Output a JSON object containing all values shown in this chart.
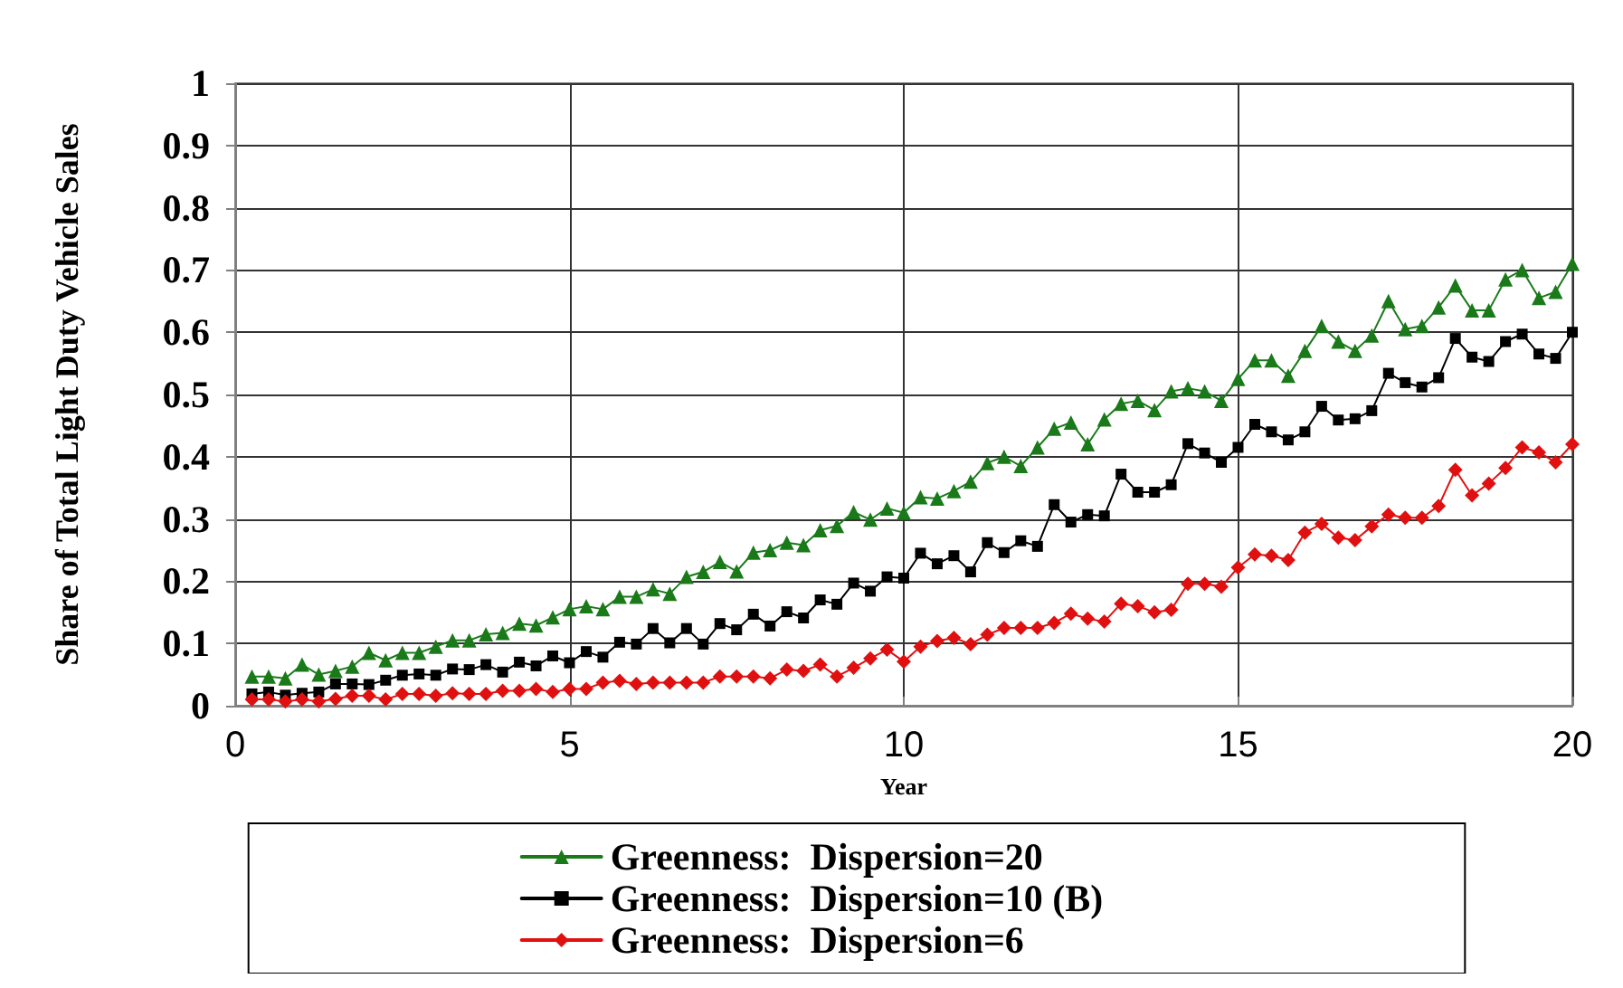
{
  "chart_data": {
    "type": "line",
    "xlabel": "Year",
    "ylabel": "Share of Total Light Duty Vehicle Sales",
    "x": [
      0.25,
      0.5,
      0.75,
      1,
      1.25,
      1.5,
      1.75,
      2,
      2.25,
      2.5,
      2.75,
      3,
      3.25,
      3.5,
      3.75,
      4,
      4.25,
      4.5,
      4.75,
      5,
      5.25,
      5.5,
      5.75,
      6,
      6.25,
      6.5,
      6.75,
      7,
      7.25,
      7.5,
      7.75,
      8,
      8.25,
      8.5,
      8.75,
      9,
      9.25,
      9.5,
      9.75,
      10,
      10.25,
      10.5,
      10.75,
      11,
      11.25,
      11.5,
      11.75,
      12,
      12.25,
      12.5,
      12.75,
      13,
      13.25,
      13.5,
      13.75,
      14,
      14.25,
      14.5,
      14.75,
      15,
      15.25,
      15.5,
      15.75,
      16,
      16.25,
      16.5,
      16.75,
      17,
      17.25,
      17.5,
      17.75,
      18,
      18.25,
      18.5,
      18.75,
      19,
      19.25,
      19.5,
      19.75,
      20
    ],
    "series": [
      {
        "name": "Greenness:  Dispersion=20",
        "color": "#1a7a1a",
        "marker": "triangle",
        "values": [
          0.047,
          0.047,
          0.044,
          0.066,
          0.05,
          0.056,
          0.063,
          0.085,
          0.073,
          0.085,
          0.085,
          0.095,
          0.105,
          0.105,
          0.115,
          0.117,
          0.132,
          0.129,
          0.142,
          0.155,
          0.16,
          0.155,
          0.175,
          0.175,
          0.187,
          0.18,
          0.207,
          0.215,
          0.231,
          0.216,
          0.246,
          0.25,
          0.262,
          0.258,
          0.282,
          0.289,
          0.311,
          0.299,
          0.317,
          0.31,
          0.335,
          0.333,
          0.345,
          0.36,
          0.39,
          0.4,
          0.385,
          0.415,
          0.445,
          0.455,
          0.42,
          0.46,
          0.485,
          0.49,
          0.475,
          0.505,
          0.51,
          0.505,
          0.49,
          0.525,
          0.555,
          0.555,
          0.53,
          0.57,
          0.61,
          0.585,
          0.57,
          0.595,
          0.65,
          0.605,
          0.61,
          0.64,
          0.675,
          0.635,
          0.635,
          0.685,
          0.7,
          0.655,
          0.665,
          0.71
        ]
      },
      {
        "name": "Greenness:  Dispersion=10 (B)",
        "color": "#000000",
        "marker": "square",
        "values": [
          0.019,
          0.022,
          0.017,
          0.02,
          0.022,
          0.035,
          0.035,
          0.034,
          0.041,
          0.049,
          0.051,
          0.049,
          0.059,
          0.058,
          0.066,
          0.054,
          0.07,
          0.064,
          0.08,
          0.069,
          0.087,
          0.078,
          0.102,
          0.099,
          0.124,
          0.101,
          0.124,
          0.099,
          0.132,
          0.122,
          0.147,
          0.128,
          0.151,
          0.141,
          0.17,
          0.163,
          0.197,
          0.184,
          0.207,
          0.205,
          0.245,
          0.228,
          0.241,
          0.215,
          0.262,
          0.246,
          0.265,
          0.256,
          0.323,
          0.295,
          0.307,
          0.305,
          0.372,
          0.343,
          0.343,
          0.355,
          0.421,
          0.406,
          0.391,
          0.415,
          0.452,
          0.44,
          0.427,
          0.44,
          0.481,
          0.459,
          0.461,
          0.474,
          0.534,
          0.519,
          0.512,
          0.527,
          0.59,
          0.56,
          0.553,
          0.585,
          0.597,
          0.565,
          0.558,
          0.6
        ]
      },
      {
        "name": "Greenness:  Dispersion=6",
        "color": "#e01010",
        "marker": "diamond",
        "values": [
          0.01,
          0.01,
          0.007,
          0.01,
          0.007,
          0.011,
          0.016,
          0.016,
          0.01,
          0.019,
          0.019,
          0.016,
          0.02,
          0.019,
          0.019,
          0.024,
          0.024,
          0.027,
          0.022,
          0.027,
          0.027,
          0.037,
          0.04,
          0.035,
          0.037,
          0.037,
          0.037,
          0.037,
          0.047,
          0.047,
          0.047,
          0.044,
          0.058,
          0.056,
          0.066,
          0.047,
          0.061,
          0.076,
          0.09,
          0.071,
          0.095,
          0.104,
          0.109,
          0.099,
          0.114,
          0.125,
          0.125,
          0.125,
          0.133,
          0.148,
          0.14,
          0.135,
          0.164,
          0.16,
          0.15,
          0.154,
          0.196,
          0.196,
          0.191,
          0.222,
          0.243,
          0.241,
          0.234,
          0.278,
          0.292,
          0.27,
          0.266,
          0.288,
          0.307,
          0.302,
          0.302,
          0.321,
          0.379,
          0.338,
          0.357,
          0.382,
          0.415,
          0.407,
          0.391,
          0.42
        ]
      }
    ],
    "xlim": [
      0,
      20
    ],
    "xticks": [
      0,
      5,
      10,
      15,
      20
    ],
    "ylim": [
      0,
      1
    ],
    "yticks": [
      0,
      0.1,
      0.2,
      0.3,
      0.4,
      0.5,
      0.6,
      0.7,
      0.8,
      0.9,
      1
    ],
    "grid": true,
    "legend": "bottom",
    "line_style": "solid"
  }
}
